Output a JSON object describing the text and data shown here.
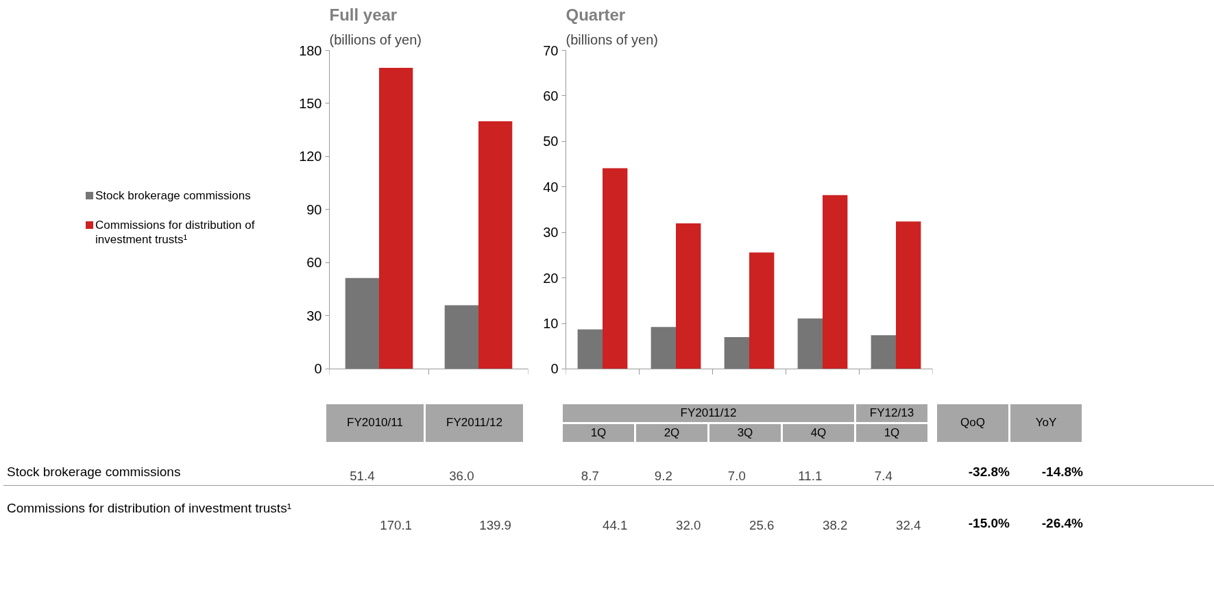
{
  "chart_data": [
    {
      "type": "bar",
      "title": "Full year",
      "ylabel": "(billions of yen)",
      "categories": [
        "FY2010/11",
        "FY2011/12"
      ],
      "series": [
        {
          "name": "Stock brokerage commissions",
          "color": "#767676",
          "values": [
            51.4,
            36.0
          ],
          "value_labels": [
            "51.4",
            "36.0"
          ]
        },
        {
          "name": "Commissions for distribution of investment trusts¹",
          "color": "#cc2222",
          "values": [
            170.1,
            139.9
          ],
          "value_labels": [
            "170.1",
            "139.9"
          ]
        }
      ],
      "ylim": [
        0,
        180
      ],
      "yticks": [
        0,
        30,
        60,
        90,
        120,
        150,
        180
      ],
      "grid": false,
      "legend": "left"
    },
    {
      "type": "bar",
      "title": "Quarter",
      "ylabel": "(billions of yen)",
      "categories": [
        "1Q",
        "2Q",
        "3Q",
        "4Q",
        "1Q"
      ],
      "series": [
        {
          "color": "#767676",
          "values": [
            8.7,
            9.2,
            7.0,
            11.1,
            7.4
          ],
          "value_labels": [
            "8.7",
            "9.2",
            "7.0",
            "11.1",
            "7.4"
          ]
        },
        {
          "color": "#cc2222",
          "values": [
            44.1,
            32.0,
            25.6,
            38.2,
            32.4
          ],
          "value_labels": [
            "44.1",
            "32.0",
            "25.6",
            "38.2",
            "32.4"
          ]
        }
      ],
      "ylim": [
        0,
        70
      ],
      "yticks": [
        0,
        10,
        20,
        30,
        40,
        50,
        60,
        70
      ],
      "grid": false,
      "annotations": [
        "FY2011/12",
        "FY12/13",
        "QoQ",
        "YoY",
        "-32.8%",
        "-14.8%",
        "-15.0%",
        "-26.4%"
      ]
    }
  ]
}
